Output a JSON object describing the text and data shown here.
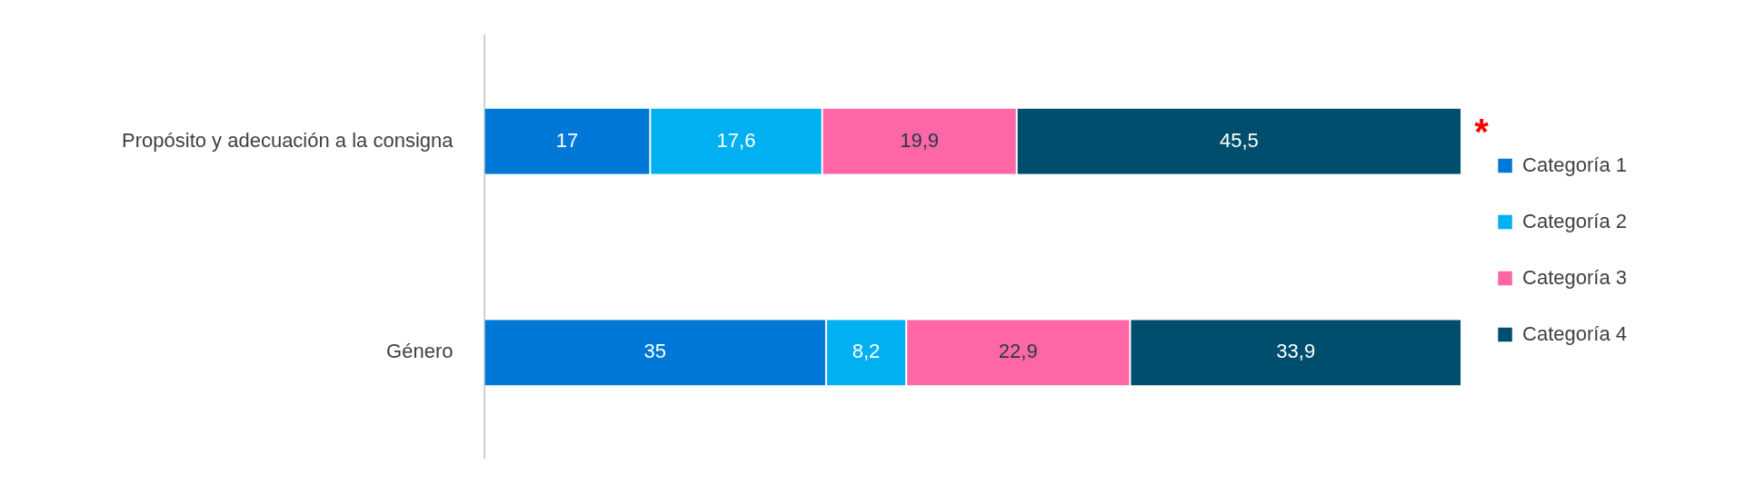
{
  "chart_data": {
    "type": "bar",
    "orientation": "horizontal",
    "stacked": true,
    "categories": [
      "Propósito y adecuación a la consigna",
      "Género"
    ],
    "series": [
      {
        "name": "Categoría 1",
        "color": "#0078d7",
        "values": [
          17,
          35
        ],
        "value_labels": [
          "17",
          "35"
        ]
      },
      {
        "name": "Categoría 2",
        "color": "#00b0f0",
        "values": [
          17.6,
          8.2
        ],
        "value_labels": [
          "17,6",
          "8,2"
        ]
      },
      {
        "name": "Categoría 3",
        "color": "#ff66a6",
        "values": [
          19.9,
          22.9
        ],
        "value_labels": [
          "19,9",
          "22,9"
        ]
      },
      {
        "name": "Categoría 4",
        "color": "#004e6e",
        "values": [
          45.5,
          33.9
        ],
        "value_labels": [
          "45,5",
          "33,9"
        ]
      }
    ],
    "xlim": [
      0,
      100
    ],
    "tick_labels": "y",
    "grid": false,
    "legend": "right",
    "annotations": [
      {
        "text": "*",
        "x": 100,
        "y": "Propósito y adecuación a la consigna"
      }
    ]
  }
}
